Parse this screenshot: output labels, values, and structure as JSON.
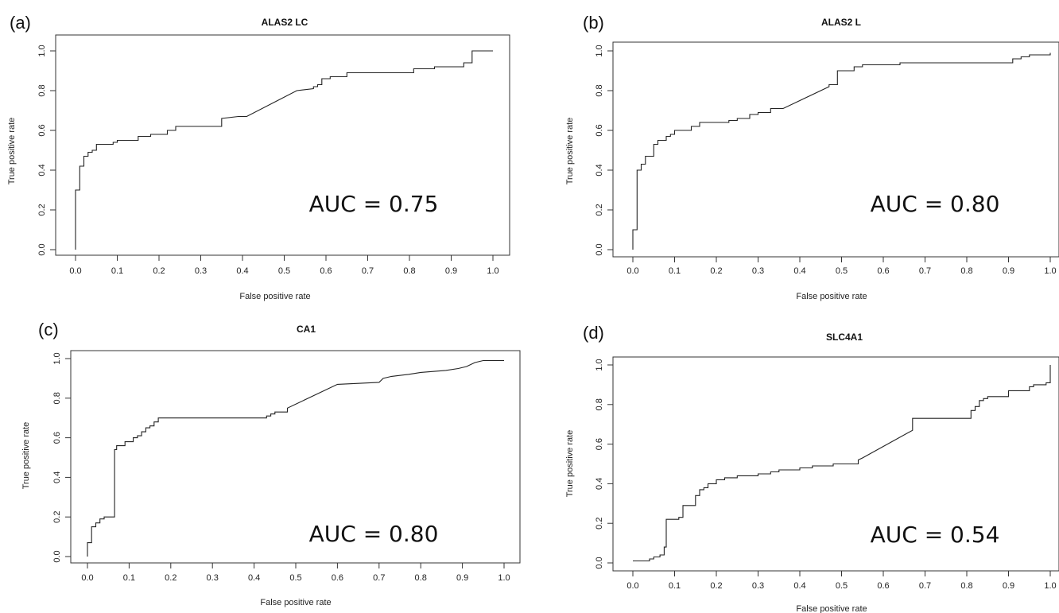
{
  "chart_data": [
    {
      "type": "line",
      "panel_label": "(a)",
      "title": "ALAS2 LC",
      "xlabel": "False positive rate",
      "ylabel": "True positive rate",
      "xlim": [
        0,
        1
      ],
      "ylim": [
        0,
        1
      ],
      "x_ticks": [
        "0.0",
        "0.1",
        "0.2",
        "0.3",
        "0.4",
        "0.5",
        "0.6",
        "0.7",
        "0.8",
        "0.9",
        "1.0"
      ],
      "y_ticks": [
        "0.0",
        "0.2",
        "0.4",
        "0.6",
        "0.8",
        "1.0"
      ],
      "annotation": "AUC = 0.75",
      "grid": false,
      "series": [
        {
          "x": [
            0.0,
            0.0,
            0.01,
            0.01,
            0.02,
            0.02,
            0.03,
            0.03,
            0.04,
            0.04,
            0.05,
            0.05,
            0.09,
            0.09,
            0.1,
            0.1,
            0.15,
            0.15,
            0.18,
            0.18,
            0.22,
            0.22,
            0.24,
            0.24,
            0.35,
            0.35,
            0.39,
            0.41,
            0.53,
            0.53,
            0.57,
            0.57,
            0.58,
            0.58,
            0.59,
            0.59,
            0.61,
            0.61,
            0.65,
            0.65,
            0.81,
            0.81,
            0.86,
            0.86,
            0.93,
            0.93,
            0.95,
            0.95,
            1.0
          ],
          "y": [
            0.0,
            0.3,
            0.3,
            0.42,
            0.42,
            0.47,
            0.47,
            0.49,
            0.49,
            0.5,
            0.5,
            0.53,
            0.53,
            0.54,
            0.54,
            0.55,
            0.55,
            0.57,
            0.57,
            0.58,
            0.58,
            0.6,
            0.6,
            0.62,
            0.62,
            0.66,
            0.67,
            0.67,
            0.8,
            0.8,
            0.81,
            0.82,
            0.82,
            0.83,
            0.83,
            0.86,
            0.86,
            0.87,
            0.87,
            0.89,
            0.89,
            0.91,
            0.91,
            0.92,
            0.92,
            0.94,
            0.94,
            1.0,
            1.0
          ]
        }
      ]
    },
    {
      "type": "line",
      "panel_label": "(b)",
      "title": "ALAS2 L",
      "xlabel": "False positive rate",
      "ylabel": "True positive rate",
      "xlim": [
        0,
        1
      ],
      "ylim": [
        0,
        1
      ],
      "x_ticks": [
        "0.0",
        "0.1",
        "0.2",
        "0.3",
        "0.4",
        "0.5",
        "0.6",
        "0.7",
        "0.8",
        "0.9",
        "1.0"
      ],
      "y_ticks": [
        "0.0",
        "0.2",
        "0.4",
        "0.6",
        "0.8",
        "1.0"
      ],
      "annotation": "AUC = 0.80",
      "grid": false,
      "series": [
        {
          "x": [
            0.0,
            0.0,
            0.01,
            0.01,
            0.02,
            0.02,
            0.03,
            0.03,
            0.05,
            0.05,
            0.06,
            0.06,
            0.08,
            0.08,
            0.09,
            0.09,
            0.1,
            0.1,
            0.14,
            0.14,
            0.16,
            0.16,
            0.23,
            0.23,
            0.25,
            0.25,
            0.28,
            0.28,
            0.3,
            0.3,
            0.33,
            0.33,
            0.36,
            0.47,
            0.47,
            0.49,
            0.49,
            0.53,
            0.53,
            0.55,
            0.55,
            0.64,
            0.64,
            0.91,
            0.91,
            0.93,
            0.93,
            0.95,
            0.95,
            1.0,
            1.0
          ],
          "y": [
            0.0,
            0.1,
            0.1,
            0.4,
            0.4,
            0.43,
            0.43,
            0.47,
            0.47,
            0.53,
            0.53,
            0.55,
            0.55,
            0.57,
            0.57,
            0.58,
            0.58,
            0.6,
            0.6,
            0.62,
            0.62,
            0.64,
            0.64,
            0.65,
            0.65,
            0.66,
            0.66,
            0.68,
            0.68,
            0.69,
            0.69,
            0.71,
            0.71,
            0.82,
            0.83,
            0.83,
            0.9,
            0.9,
            0.92,
            0.92,
            0.93,
            0.93,
            0.94,
            0.94,
            0.96,
            0.96,
            0.97,
            0.97,
            0.98,
            0.98,
            0.99
          ]
        }
      ]
    },
    {
      "type": "line",
      "panel_label": "(c)",
      "title": "CA1",
      "xlabel": "False positive rate",
      "ylabel": "True positive rate",
      "xlim": [
        0,
        1
      ],
      "ylim": [
        0,
        1
      ],
      "x_ticks": [
        "0.0",
        "0.1",
        "0.2",
        "0.3",
        "0.4",
        "0.5",
        "0.6",
        "0.7",
        "0.8",
        "0.9",
        "1.0"
      ],
      "y_ticks": [
        "0.0",
        "0.2",
        "0.4",
        "0.6",
        "0.8",
        "1.0"
      ],
      "annotation": "AUC = 0.80",
      "grid": false,
      "series": [
        {
          "x": [
            0.0,
            0.0,
            0.01,
            0.01,
            0.02,
            0.02,
            0.03,
            0.03,
            0.04,
            0.04,
            0.065,
            0.065,
            0.07,
            0.07,
            0.09,
            0.09,
            0.11,
            0.11,
            0.12,
            0.12,
            0.13,
            0.13,
            0.14,
            0.14,
            0.15,
            0.15,
            0.16,
            0.16,
            0.17,
            0.17,
            0.43,
            0.43,
            0.44,
            0.44,
            0.45,
            0.45,
            0.48,
            0.48,
            0.6,
            0.6,
            0.7,
            0.7,
            0.71,
            0.71,
            0.73,
            0.73,
            0.77,
            0.77,
            0.8,
            0.8,
            0.86,
            0.86,
            0.89,
            0.89,
            0.91,
            0.91,
            0.93,
            0.93,
            0.95,
            0.95,
            1.0
          ],
          "y": [
            0.0,
            0.07,
            0.07,
            0.15,
            0.15,
            0.17,
            0.17,
            0.19,
            0.19,
            0.2,
            0.2,
            0.54,
            0.54,
            0.56,
            0.56,
            0.58,
            0.58,
            0.6,
            0.6,
            0.61,
            0.61,
            0.63,
            0.63,
            0.65,
            0.65,
            0.66,
            0.66,
            0.68,
            0.68,
            0.7,
            0.7,
            0.71,
            0.71,
            0.72,
            0.72,
            0.73,
            0.73,
            0.75,
            0.87,
            0.87,
            0.88,
            0.88,
            0.9,
            0.9,
            0.91,
            0.91,
            0.92,
            0.92,
            0.93,
            0.93,
            0.94,
            0.94,
            0.95,
            0.95,
            0.96,
            0.96,
            0.98,
            0.98,
            0.99,
            0.99,
            0.99
          ]
        }
      ]
    },
    {
      "type": "line",
      "panel_label": "(d)",
      "title": "SLC4A1",
      "xlabel": "False positive rate",
      "ylabel": "True positive rate",
      "xlim": [
        0,
        1
      ],
      "ylim": [
        0,
        1
      ],
      "x_ticks": [
        "0.0",
        "0.1",
        "0.2",
        "0.3",
        "0.4",
        "0.5",
        "0.6",
        "0.7",
        "0.8",
        "0.9",
        "1.0"
      ],
      "y_ticks": [
        "0.0",
        "0.2",
        "0.4",
        "0.6",
        "0.8",
        "1.0"
      ],
      "annotation": "AUC = 0.54",
      "grid": false,
      "series": [
        {
          "x": [
            0.0,
            0.0,
            0.04,
            0.04,
            0.05,
            0.05,
            0.065,
            0.065,
            0.075,
            0.075,
            0.08,
            0.08,
            0.11,
            0.11,
            0.12,
            0.12,
            0.15,
            0.15,
            0.16,
            0.16,
            0.17,
            0.17,
            0.18,
            0.18,
            0.2,
            0.2,
            0.22,
            0.22,
            0.25,
            0.25,
            0.3,
            0.3,
            0.33,
            0.33,
            0.35,
            0.35,
            0.4,
            0.4,
            0.43,
            0.43,
            0.48,
            0.48,
            0.54,
            0.54,
            0.55,
            0.67,
            0.67,
            0.81,
            0.81,
            0.82,
            0.82,
            0.83,
            0.83,
            0.84,
            0.84,
            0.85,
            0.85,
            0.9,
            0.9,
            0.95,
            0.95,
            0.96,
            0.96,
            0.99,
            0.99,
            1.0,
            1.0
          ],
          "y": [
            0.01,
            0.01,
            0.01,
            0.02,
            0.02,
            0.03,
            0.03,
            0.04,
            0.04,
            0.08,
            0.08,
            0.22,
            0.22,
            0.23,
            0.23,
            0.29,
            0.29,
            0.34,
            0.34,
            0.37,
            0.37,
            0.38,
            0.38,
            0.4,
            0.4,
            0.42,
            0.42,
            0.43,
            0.43,
            0.44,
            0.44,
            0.45,
            0.45,
            0.46,
            0.46,
            0.47,
            0.47,
            0.48,
            0.48,
            0.49,
            0.49,
            0.5,
            0.5,
            0.52,
            0.53,
            0.67,
            0.73,
            0.73,
            0.77,
            0.77,
            0.79,
            0.79,
            0.82,
            0.82,
            0.83,
            0.83,
            0.84,
            0.84,
            0.87,
            0.87,
            0.89,
            0.89,
            0.9,
            0.9,
            0.91,
            0.91,
            1.0
          ]
        }
      ]
    }
  ]
}
